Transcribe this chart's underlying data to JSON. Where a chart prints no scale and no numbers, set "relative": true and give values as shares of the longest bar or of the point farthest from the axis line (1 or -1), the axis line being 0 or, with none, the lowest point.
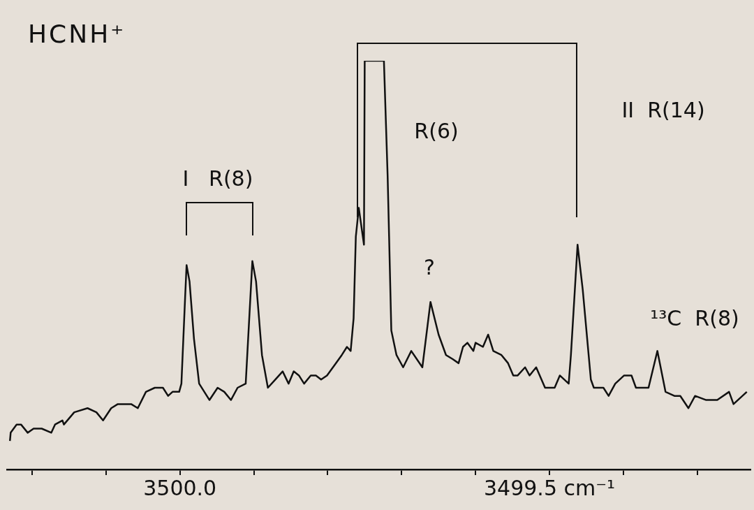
{
  "chart_data": {
    "type": "line",
    "title": "HCNH⁺",
    "annotations": [
      "I   R(8)",
      "R(6)",
      "II  R(14)",
      "?",
      "¹³C  R(8)"
    ],
    "relative": true,
    "marker": "none",
    "xlim": [
      3500.234,
      3499.228
    ],
    "xticks": [
      {
        "value": 3500.2,
        "label": null
      },
      {
        "value": 3500.1,
        "label": null
      },
      {
        "value": 3500.0,
        "label": "3500.0"
      },
      {
        "value": 3499.9,
        "label": null
      },
      {
        "value": 3499.8,
        "label": null
      },
      {
        "value": 3499.7,
        "label": null
      },
      {
        "value": 3499.6,
        "label": null
      },
      {
        "value": 3499.5,
        "label": "3499.5 cm⁻¹"
      },
      {
        "value": 3499.4,
        "label": null
      },
      {
        "value": 3499.3,
        "label": null
      }
    ],
    "x": [
      3500.23,
      3500.229,
      3500.221,
      3500.215,
      3500.206,
      3500.198,
      3500.187,
      3500.174,
      3500.169,
      3500.159,
      3500.157,
      3500.143,
      3500.125,
      3500.113,
      3500.104,
      3500.093,
      3500.084,
      3500.075,
      3500.066,
      3500.057,
      3500.046,
      3500.034,
      3500.023,
      3500.016,
      3500.01,
      3500.001,
      3499.998,
      3499.993,
      3499.991,
      3499.987,
      3499.981,
      3499.974,
      3499.96,
      3499.949,
      3499.94,
      3499.931,
      3499.922,
      3499.911,
      3499.908,
      3499.902,
      3499.897,
      3499.889,
      3499.881,
      3499.871,
      3499.861,
      3499.853,
      3499.846,
      3499.839,
      3499.832,
      3499.823,
      3499.816,
      3499.809,
      3499.801,
      3499.789,
      3499.781,
      3499.774,
      3499.769,
      3499.765,
      3499.762,
      3499.758,
      3499.751,
      3499.75,
      3499.724,
      3499.719,
      3499.717,
      3499.714,
      3499.707,
      3499.698,
      3499.687,
      3499.672,
      3499.661,
      3499.65,
      3499.64,
      3499.631,
      3499.623,
      3499.617,
      3499.611,
      3499.603,
      3499.6,
      3499.59,
      3499.583,
      3499.576,
      3499.565,
      3499.556,
      3499.549,
      3499.543,
      3499.533,
      3499.527,
      3499.518,
      3499.506,
      3499.493,
      3499.486,
      3499.474,
      3499.471,
      3499.462,
      3499.455,
      3499.444,
      3499.44,
      3499.427,
      3499.42,
      3499.411,
      3499.399,
      3499.389,
      3499.383,
      3499.371,
      3499.366,
      3499.354,
      3499.343,
      3499.331,
      3499.323,
      3499.312,
      3499.303,
      3499.288,
      3499.273,
      3499.257,
      3499.251,
      3499.233
    ],
    "series": [
      {
        "color": "#111111",
        "values": [
          0.07,
          0.09,
          0.11,
          0.11,
          0.09,
          0.1,
          0.1,
          0.09,
          0.11,
          0.12,
          0.11,
          0.14,
          0.15,
          0.14,
          0.12,
          0.15,
          0.16,
          0.16,
          0.16,
          0.15,
          0.19,
          0.2,
          0.2,
          0.18,
          0.19,
          0.19,
          0.21,
          0.42,
          0.5,
          0.46,
          0.32,
          0.21,
          0.17,
          0.2,
          0.19,
          0.17,
          0.2,
          0.21,
          0.31,
          0.51,
          0.46,
          0.28,
          0.2,
          0.22,
          0.24,
          0.21,
          0.24,
          0.23,
          0.21,
          0.23,
          0.23,
          0.22,
          0.23,
          0.26,
          0.28,
          0.3,
          0.29,
          0.37,
          0.57,
          0.64,
          0.55,
          1.0,
          1.0,
          0.72,
          0.57,
          0.34,
          0.28,
          0.25,
          0.29,
          0.25,
          0.41,
          0.33,
          0.28,
          0.27,
          0.26,
          0.3,
          0.31,
          0.29,
          0.31,
          0.3,
          0.33,
          0.29,
          0.28,
          0.26,
          0.23,
          0.23,
          0.25,
          0.23,
          0.25,
          0.2,
          0.2,
          0.23,
          0.21,
          0.28,
          0.55,
          0.44,
          0.22,
          0.2,
          0.2,
          0.18,
          0.21,
          0.23,
          0.23,
          0.2,
          0.2,
          0.2,
          0.29,
          0.19,
          0.18,
          0.18,
          0.15,
          0.18,
          0.17,
          0.17,
          0.19,
          0.16,
          0.19
        ]
      }
    ]
  }
}
